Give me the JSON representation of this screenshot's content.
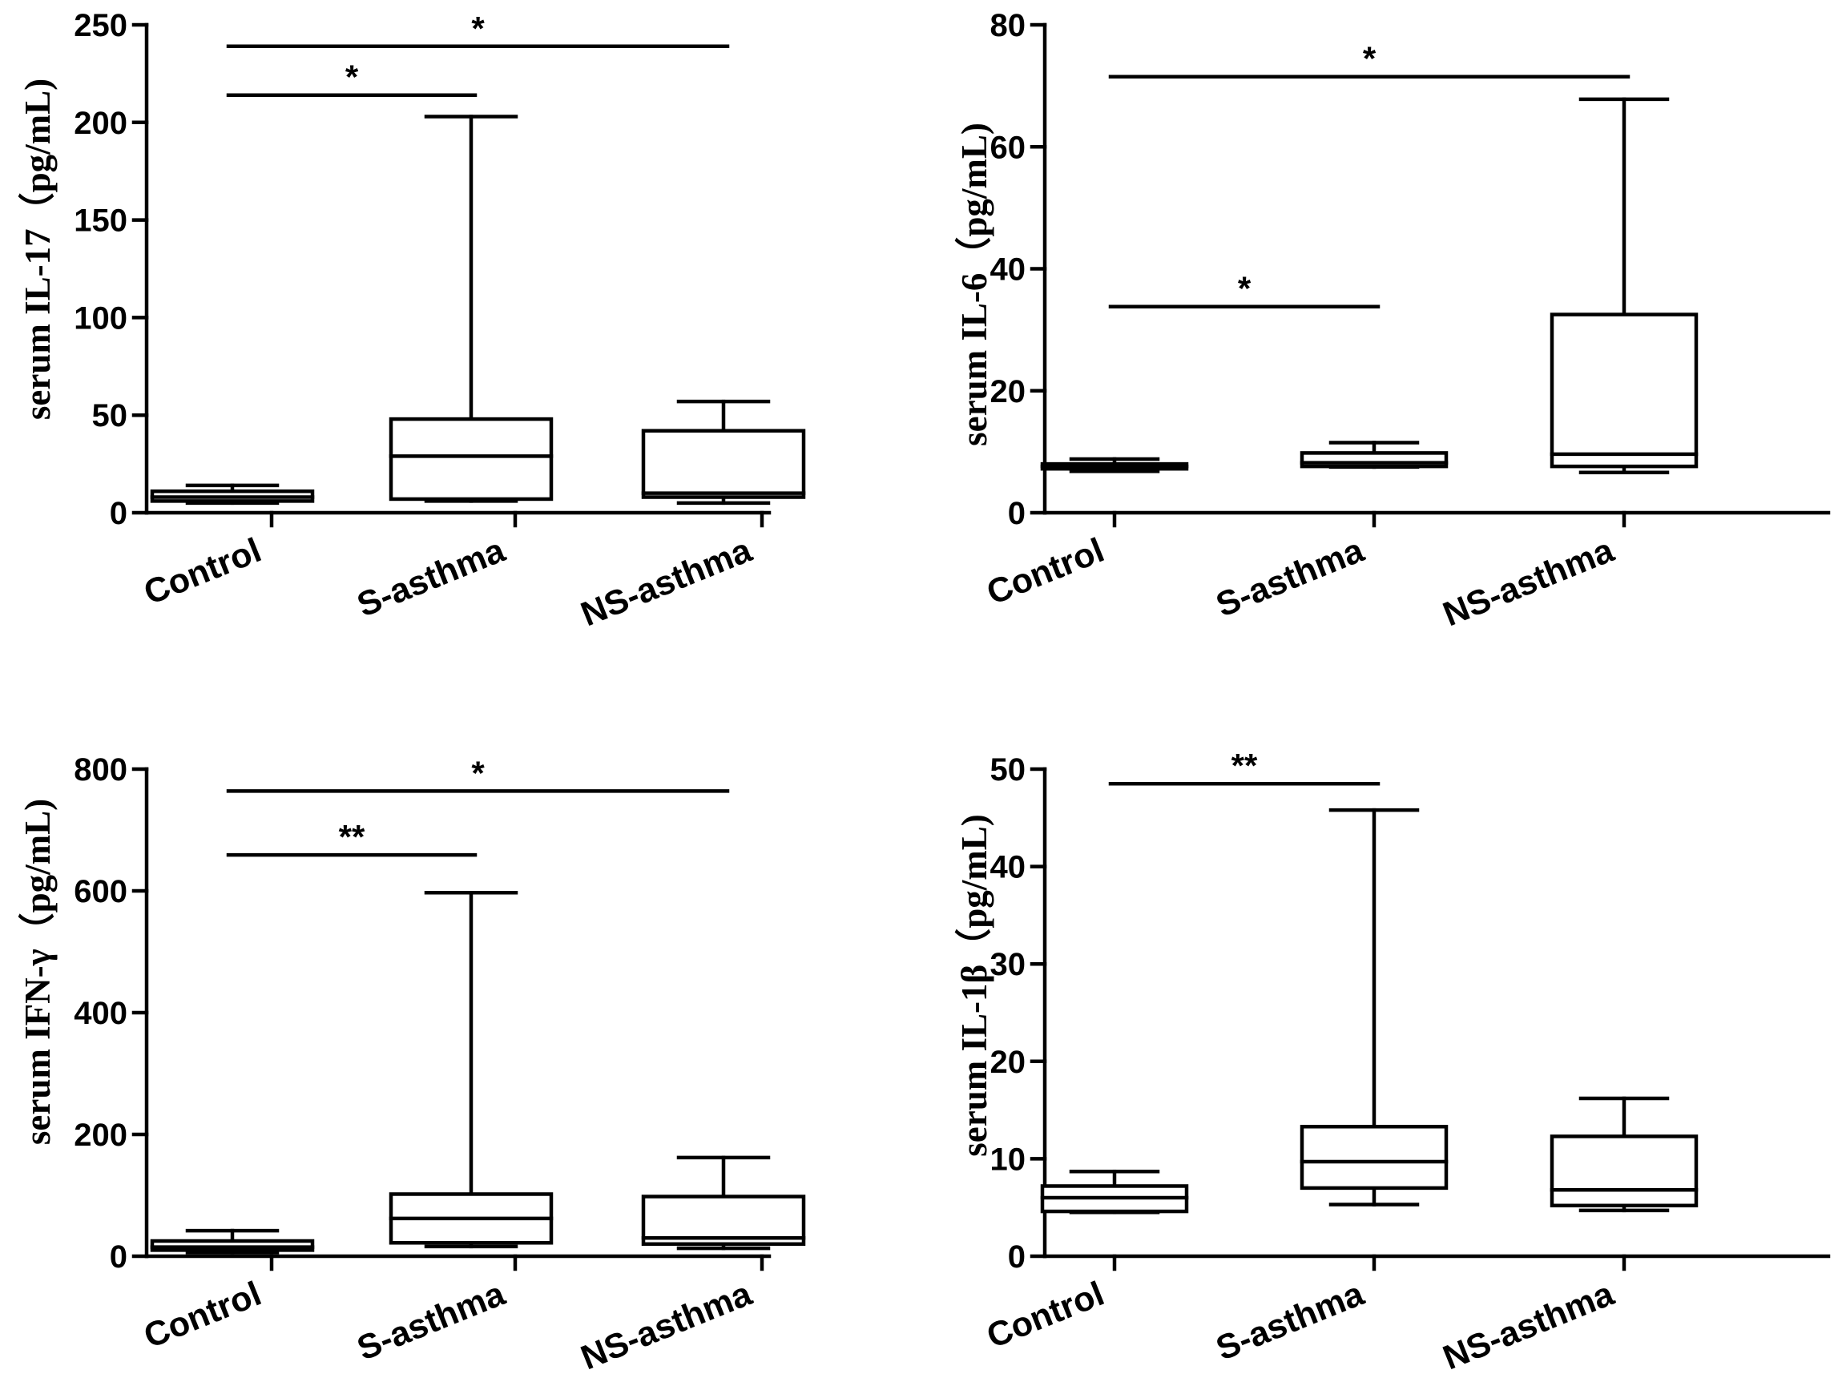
{
  "chart_data": [
    {
      "type": "boxplot",
      "ylabel": "serum IL-17（pg/mL)",
      "ylim": [
        0,
        250
      ],
      "yticks": [
        0,
        50,
        100,
        150,
        200,
        250
      ],
      "categories": [
        "Control",
        "S-asthma",
        "NS-asthma"
      ],
      "boxes": [
        {
          "min": 5,
          "q1": 6,
          "median": 8,
          "q3": 11,
          "max": 14
        },
        {
          "min": 6,
          "q1": 7,
          "median": 29,
          "q3": 48,
          "max": 203
        },
        {
          "min": 5,
          "q1": 8,
          "median": 10,
          "q3": 42,
          "max": 57
        }
      ],
      "significance": [
        {
          "from": 0,
          "to": 1,
          "label": "*",
          "y": 214
        },
        {
          "from": 0,
          "to": 2,
          "label": "*",
          "y": 239
        }
      ]
    },
    {
      "type": "boxplot",
      "ylabel": "serum IL-6（pg/mL)",
      "ylim": [
        0,
        80
      ],
      "yticks": [
        0,
        20,
        40,
        60,
        80
      ],
      "categories": [
        "Control",
        "S-asthma",
        "NS-asthma"
      ],
      "boxes": [
        {
          "min": 6.8,
          "q1": 7.2,
          "median": 7.6,
          "q3": 8,
          "max": 8.8
        },
        {
          "min": 7.5,
          "q1": 7.6,
          "median": 8.2,
          "q3": 9.8,
          "max": 11.5
        },
        {
          "min": 6.6,
          "q1": 7.6,
          "median": 9.6,
          "q3": 32.5,
          "max": 67.8
        }
      ],
      "significance": [
        {
          "from": 0,
          "to": 1,
          "label": "*",
          "y": 33.8
        },
        {
          "from": 0,
          "to": 2,
          "label": "*",
          "y": 71.5
        }
      ]
    },
    {
      "type": "boxplot",
      "ylabel": "serum IFN-γ（pg/mL)",
      "ylim": [
        0,
        800
      ],
      "yticks": [
        0,
        200,
        400,
        600,
        800
      ],
      "categories": [
        "Control",
        "S-asthma",
        "NS-asthma"
      ],
      "boxes": [
        {
          "min": 6,
          "q1": 10,
          "median": 15,
          "q3": 25,
          "max": 42
        },
        {
          "min": 16,
          "q1": 22,
          "median": 62,
          "q3": 102,
          "max": 597
        },
        {
          "min": 13,
          "q1": 20,
          "median": 30,
          "q3": 98,
          "max": 162
        }
      ],
      "significance": [
        {
          "from": 0,
          "to": 1,
          "label": "**",
          "y": 659
        },
        {
          "from": 0,
          "to": 2,
          "label": "*",
          "y": 764
        }
      ]
    },
    {
      "type": "boxplot",
      "ylabel": "serum IL-1β（pg/mL)",
      "ylim": [
        0,
        50
      ],
      "yticks": [
        0,
        10,
        20,
        30,
        40,
        50
      ],
      "categories": [
        "Control",
        "S-asthma",
        "NS-asthma"
      ],
      "boxes": [
        {
          "min": 4.5,
          "q1": 4.6,
          "median": 6,
          "q3": 7.2,
          "max": 8.7
        },
        {
          "min": 5.3,
          "q1": 7,
          "median": 9.7,
          "q3": 13.3,
          "max": 45.8
        },
        {
          "min": 4.7,
          "q1": 5.2,
          "median": 6.8,
          "q3": 12.3,
          "max": 16.2
        }
      ],
      "significance": [
        {
          "from": 0,
          "to": 1,
          "label": "**",
          "y": 48.5
        }
      ]
    }
  ]
}
